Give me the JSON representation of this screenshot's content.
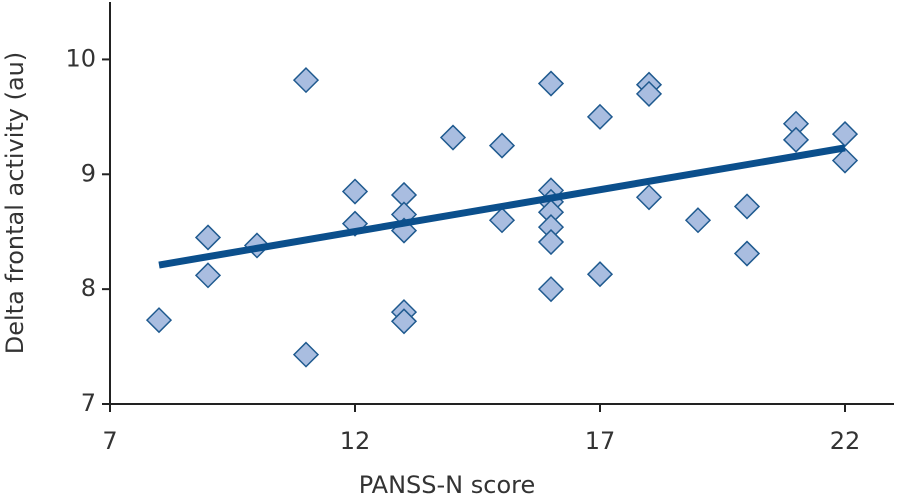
{
  "chart_data": {
    "type": "scatter",
    "x_label": "PANSS-N score",
    "y_label": "Delta frontal activity (au)",
    "xlim": [
      7,
      23
    ],
    "xticks": [
      7,
      12,
      17,
      22
    ],
    "ylim": [
      7,
      10.5
    ],
    "yticks": [
      7,
      8,
      9,
      10
    ],
    "color": "#a9bde0",
    "edge_color": "#1f5a8f",
    "x": [
      8,
      9,
      9,
      10,
      11,
      11,
      12,
      12,
      13,
      13,
      13,
      13,
      13,
      14,
      15,
      15,
      16,
      16,
      16,
      16,
      16,
      16,
      16,
      17,
      17,
      18,
      18,
      18,
      19,
      20,
      20,
      21,
      21,
      22,
      22
    ],
    "values": [
      7.73,
      8.45,
      8.12,
      8.38,
      9.82,
      7.43,
      8.85,
      8.57,
      8.82,
      8.65,
      8.51,
      7.8,
      7.72,
      9.32,
      9.25,
      8.6,
      9.79,
      8.86,
      8.76,
      8.67,
      8.54,
      8.41,
      8.0,
      9.5,
      8.13,
      9.78,
      9.7,
      8.8,
      8.6,
      8.72,
      8.31,
      9.44,
      9.3,
      9.35,
      9.12
    ],
    "trend_line": {
      "x": [
        8,
        22
      ],
      "values": [
        8.21,
        9.23
      ],
      "color": "#0b4f8c"
    }
  }
}
